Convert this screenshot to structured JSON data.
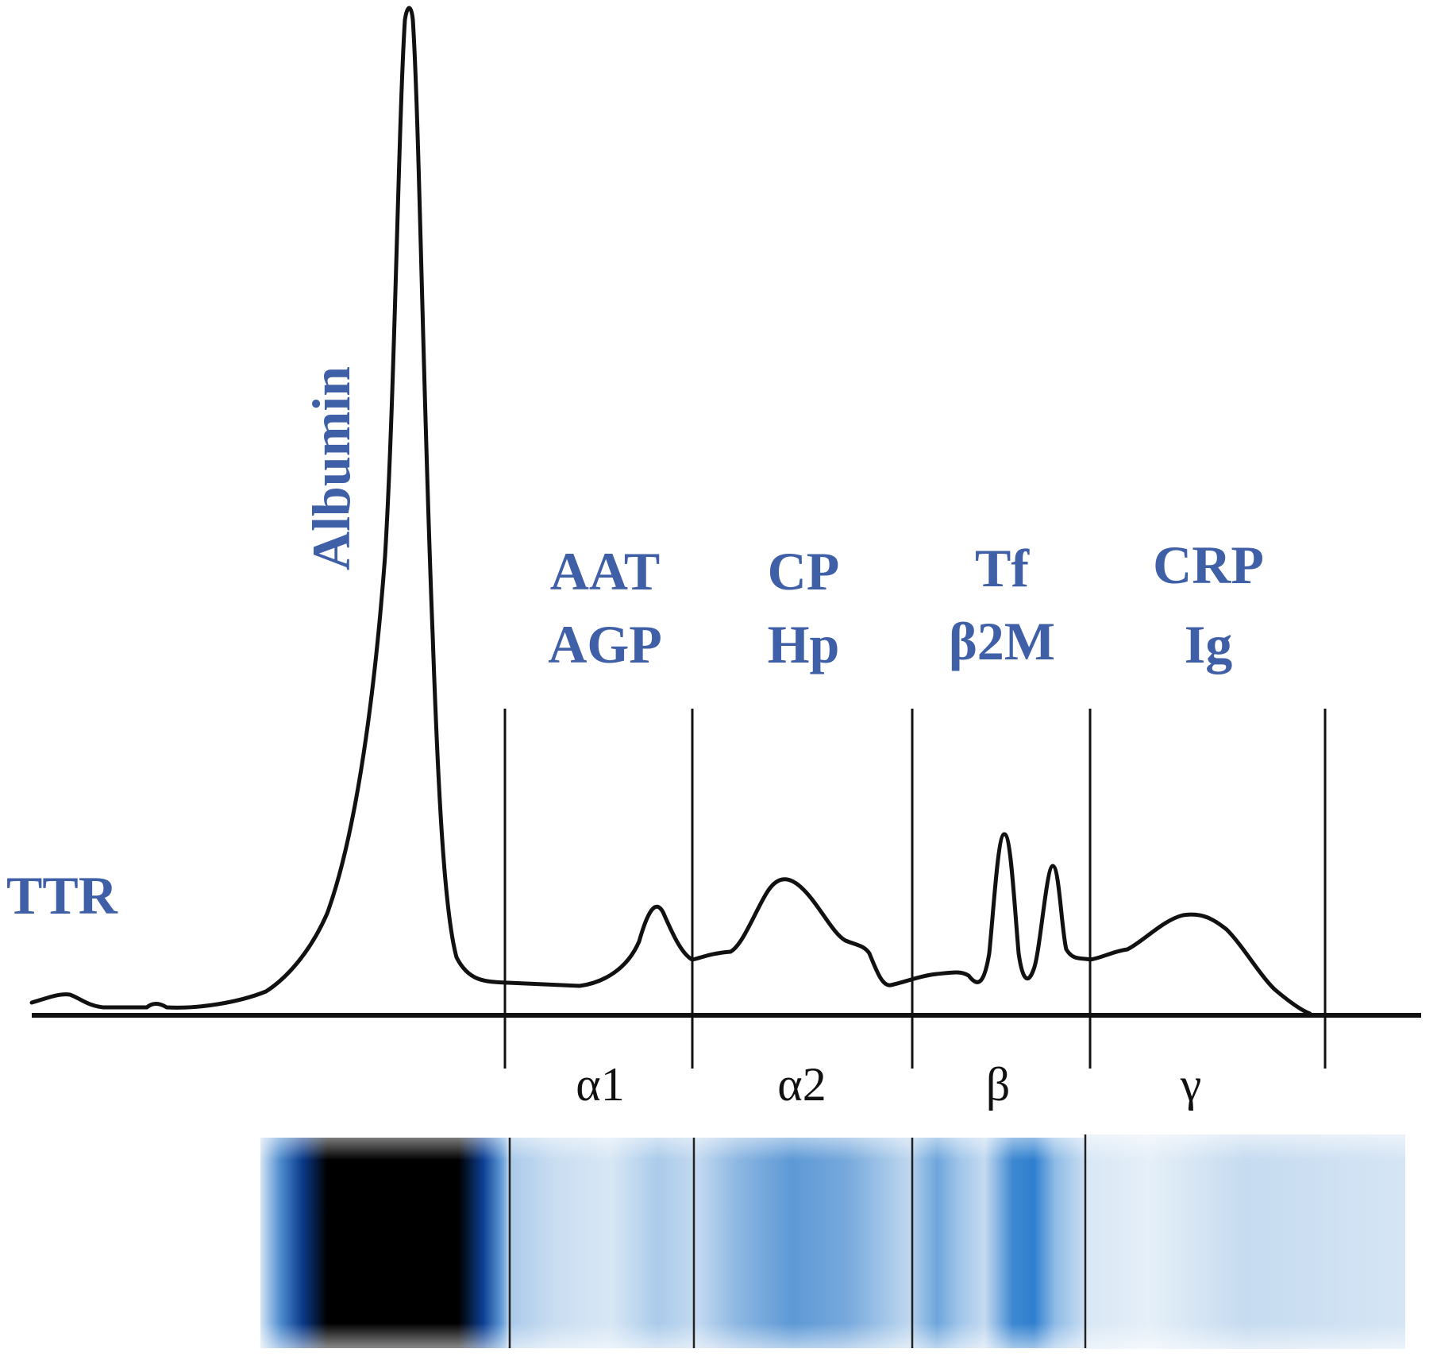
{
  "colors": {
    "label_blue": "#3f5fa6",
    "curve": "#111111",
    "gel_background": "#ffffff"
  },
  "labels": {
    "ttr": "TTR",
    "albumin": "Albumin",
    "alpha1_proteins": [
      "AAT",
      "AGP"
    ],
    "alpha2_proteins": [
      "CP",
      "Hp"
    ],
    "beta_proteins": [
      "Tf",
      "β2M"
    ],
    "gamma_proteins": [
      "CRP",
      "Ig"
    ]
  },
  "fractions": [
    "α1",
    "α2",
    "β",
    "γ"
  ]
}
